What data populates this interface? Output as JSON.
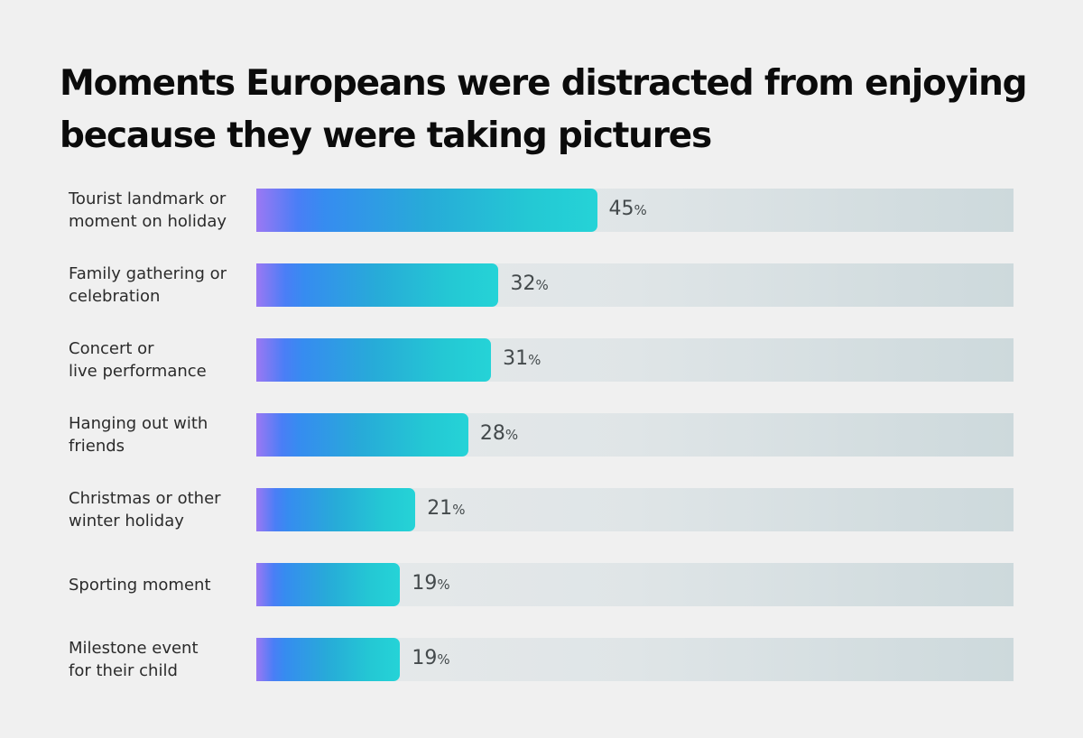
{
  "chart_data": {
    "type": "bar",
    "orientation": "horizontal",
    "title": "Moments Europeans were distracted from enjoying because they were taking pictures",
    "categories": [
      "Tourist landmark or\nmoment on holiday",
      "Family gathering or\ncelebration",
      "Concert or\nlive performance",
      "Hanging out with\nfriends",
      "Christmas or other\nwinter holiday",
      "Sporting moment",
      "Milestone event\nfor their child"
    ],
    "values": [
      45,
      32,
      31,
      28,
      21,
      19,
      19
    ],
    "value_suffix": "%",
    "xlim": [
      0,
      100
    ],
    "grid": false,
    "colors": {
      "gradient_start": "#9b78f3",
      "gradient_mid": "#368cf0",
      "gradient_end": "#25d3d7",
      "track": "#dfe5e7",
      "background": "#f0f0f0"
    }
  }
}
